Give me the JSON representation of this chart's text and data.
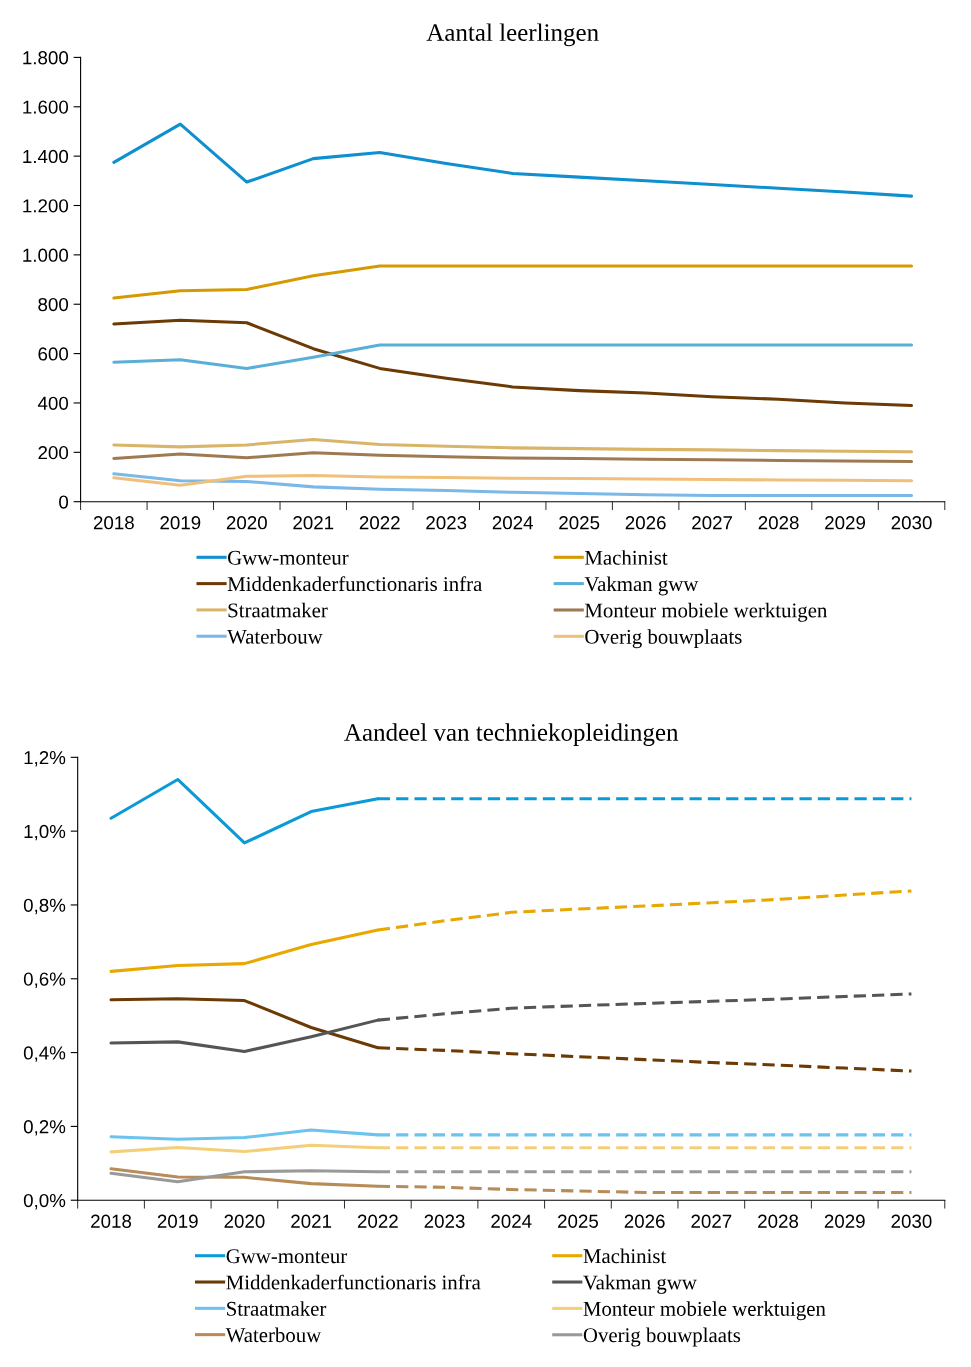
{
  "chart_data": [
    {
      "type": "line",
      "title": "Aantal leerlingen",
      "categories": [
        "2018",
        "2019",
        "2020",
        "2021",
        "2022",
        "2023",
        "2024",
        "2025",
        "2026",
        "2027",
        "2028",
        "2029",
        "2030"
      ],
      "ylim": [
        0,
        1800
      ],
      "yticks": [
        {
          "value": 0,
          "label": "0"
        },
        {
          "value": 200,
          "label": "200"
        },
        {
          "value": 400,
          "label": "400"
        },
        {
          "value": 600,
          "label": "600"
        },
        {
          "value": 800,
          "label": "800"
        },
        {
          "value": 1000,
          "label": "1.000"
        },
        {
          "value": 1200,
          "label": "1.200"
        },
        {
          "value": 1400,
          "label": "1.400"
        },
        {
          "value": 1600,
          "label": "1.600"
        },
        {
          "value": 1800,
          "label": "1.800"
        }
      ],
      "grid": false,
      "legend": "bottom",
      "marker": "none",
      "line_style": "solid",
      "series": [
        {
          "name": "Gww-monteur",
          "color": "#0e8fcf",
          "values": [
            1375,
            1530,
            1295,
            1390,
            1415,
            1370,
            1330,
            1315,
            1300,
            1285,
            1270,
            1255,
            1238
          ]
        },
        {
          "name": "Machinist",
          "color": "#d49a00",
          "values": [
            825,
            855,
            860,
            915,
            955,
            955,
            955,
            955,
            955,
            955,
            955,
            955,
            955
          ]
        },
        {
          "name": "Middenkaderfunctionaris infra",
          "color": "#6b3a05",
          "values": [
            720,
            735,
            725,
            620,
            540,
            500,
            465,
            450,
            440,
            425,
            415,
            400,
            390
          ]
        },
        {
          "name": "Vakman gww",
          "color": "#5aafd6",
          "values": [
            565,
            575,
            540,
            585,
            635,
            635,
            635,
            635,
            635,
            635,
            635,
            635,
            635
          ]
        },
        {
          "name": "Straatmaker",
          "color": "#d9b56a",
          "values": [
            230,
            222,
            230,
            252,
            232,
            225,
            218,
            215,
            212,
            210,
            207,
            204,
            202
          ]
        },
        {
          "name": "Monteur mobiele werktuigen",
          "color": "#9e7a52",
          "values": [
            175,
            193,
            178,
            198,
            188,
            182,
            177,
            175,
            172,
            170,
            167,
            165,
            163
          ]
        },
        {
          "name": "Waterbouw",
          "color": "#7ab8e8",
          "values": [
            113,
            85,
            82,
            60,
            50,
            45,
            38,
            33,
            28,
            25,
            25,
            25,
            25
          ]
        },
        {
          "name": "Overig bouwplaats",
          "color": "#f0c07a",
          "values": [
            97,
            67,
            103,
            106,
            100,
            98,
            95,
            94,
            92,
            90,
            88,
            87,
            85
          ]
        }
      ]
    },
    {
      "type": "line",
      "title": "Aandeel van techniekopleidingen",
      "categories": [
        "2018",
        "2019",
        "2020",
        "2021",
        "2022",
        "2023",
        "2024",
        "2025",
        "2026",
        "2027",
        "2028",
        "2029",
        "2030"
      ],
      "ylim": [
        0,
        1.2
      ],
      "yticks": [
        {
          "value": 0,
          "label": "0,0%"
        },
        {
          "value": 0.2,
          "label": "0,2%"
        },
        {
          "value": 0.4,
          "label": "0,4%"
        },
        {
          "value": 0.6,
          "label": "0,6%"
        },
        {
          "value": 0.8,
          "label": "0,8%"
        },
        {
          "value": 1.0,
          "label": "1,0%"
        },
        {
          "value": 1.2,
          "label": "1,2%"
        }
      ],
      "grid": false,
      "legend": "bottom",
      "marker": "none",
      "series": [
        {
          "name": "Gww-monteur",
          "color": "#0a9ad8",
          "line_style": "solid",
          "values": [
            1.035,
            1.14,
            0.968,
            1.053,
            1.088,
            null,
            null,
            null,
            null,
            null,
            null,
            null,
            null
          ]
        },
        {
          "color": "#0a9ad8",
          "line_style": "dashed",
          "values": [
            null,
            null,
            null,
            null,
            1.088,
            1.088,
            1.088,
            1.088,
            1.088,
            1.088,
            1.088,
            1.088,
            1.088
          ]
        },
        {
          "name": "Machinist",
          "color": "#e8a800",
          "line_style": "solid",
          "values": [
            0.62,
            0.636,
            0.641,
            0.693,
            0.732,
            null,
            null,
            null,
            null,
            null,
            null,
            null,
            null
          ]
        },
        {
          "color": "#e8a800",
          "line_style": "dashed",
          "values": [
            null,
            null,
            null,
            null,
            0.732,
            0.757,
            0.78,
            0.789,
            0.797,
            0.806,
            0.815,
            0.827,
            0.838
          ]
        },
        {
          "name": "Middenkaderfunctionaris infra",
          "color": "#6b3a05",
          "line_style": "solid",
          "values": [
            0.543,
            0.546,
            0.541,
            0.468,
            0.413,
            null,
            null,
            null,
            null,
            null,
            null,
            null,
            null
          ]
        },
        {
          "color": "#6b3a05",
          "line_style": "dashed",
          "values": [
            null,
            null,
            null,
            null,
            0.413,
            0.406,
            0.397,
            0.389,
            0.381,
            0.373,
            0.366,
            0.358,
            0.35
          ]
        },
        {
          "name": "Vakman gww",
          "color": "#555555",
          "line_style": "solid",
          "values": [
            0.426,
            0.429,
            0.403,
            0.443,
            0.488,
            null,
            null,
            null,
            null,
            null,
            null,
            null,
            null
          ]
        },
        {
          "color": "#555555",
          "line_style": "dashed",
          "values": [
            null,
            null,
            null,
            null,
            0.488,
            0.505,
            0.52,
            0.527,
            0.533,
            0.539,
            0.545,
            0.552,
            0.559
          ]
        },
        {
          "name": "Straatmaker",
          "color": "#6cc4ee",
          "line_style": "solid",
          "values": [
            0.172,
            0.165,
            0.17,
            0.19,
            0.177,
            null,
            null,
            null,
            null,
            null,
            null,
            null,
            null
          ]
        },
        {
          "color": "#6cc4ee",
          "line_style": "dashed",
          "values": [
            null,
            null,
            null,
            null,
            0.177,
            0.177,
            0.177,
            0.177,
            0.177,
            0.177,
            0.177,
            0.177,
            0.177
          ]
        },
        {
          "name": "Monteur mobiele werktuigen",
          "color": "#f3cf7a",
          "line_style": "solid",
          "values": [
            0.131,
            0.143,
            0.132,
            0.149,
            0.142,
            null,
            null,
            null,
            null,
            null,
            null,
            null,
            null
          ]
        },
        {
          "color": "#f3cf7a",
          "line_style": "dashed",
          "values": [
            null,
            null,
            null,
            null,
            0.142,
            0.142,
            0.142,
            0.142,
            0.142,
            0.142,
            0.142,
            0.142,
            0.142
          ]
        },
        {
          "name": "Waterbouw",
          "color": "#b88c5a",
          "line_style": "solid",
          "values": [
            0.085,
            0.063,
            0.062,
            0.045,
            0.038,
            null,
            null,
            null,
            null,
            null,
            null,
            null,
            null
          ]
        },
        {
          "color": "#b88c5a",
          "line_style": "dashed",
          "values": [
            null,
            null,
            null,
            null,
            0.038,
            0.035,
            0.029,
            0.025,
            0.021,
            0.021,
            0.021,
            0.021,
            0.021
          ]
        },
        {
          "name": "Overig bouwplaats",
          "color": "#999999",
          "line_style": "solid",
          "values": [
            0.073,
            0.05,
            0.077,
            0.08,
            0.077,
            null,
            null,
            null,
            null,
            null,
            null,
            null,
            null
          ]
        },
        {
          "color": "#999999",
          "line_style": "dashed",
          "values": [
            null,
            null,
            null,
            null,
            0.077,
            0.077,
            0.077,
            0.077,
            0.077,
            0.077,
            0.077,
            0.077,
            0.077
          ]
        }
      ]
    }
  ]
}
